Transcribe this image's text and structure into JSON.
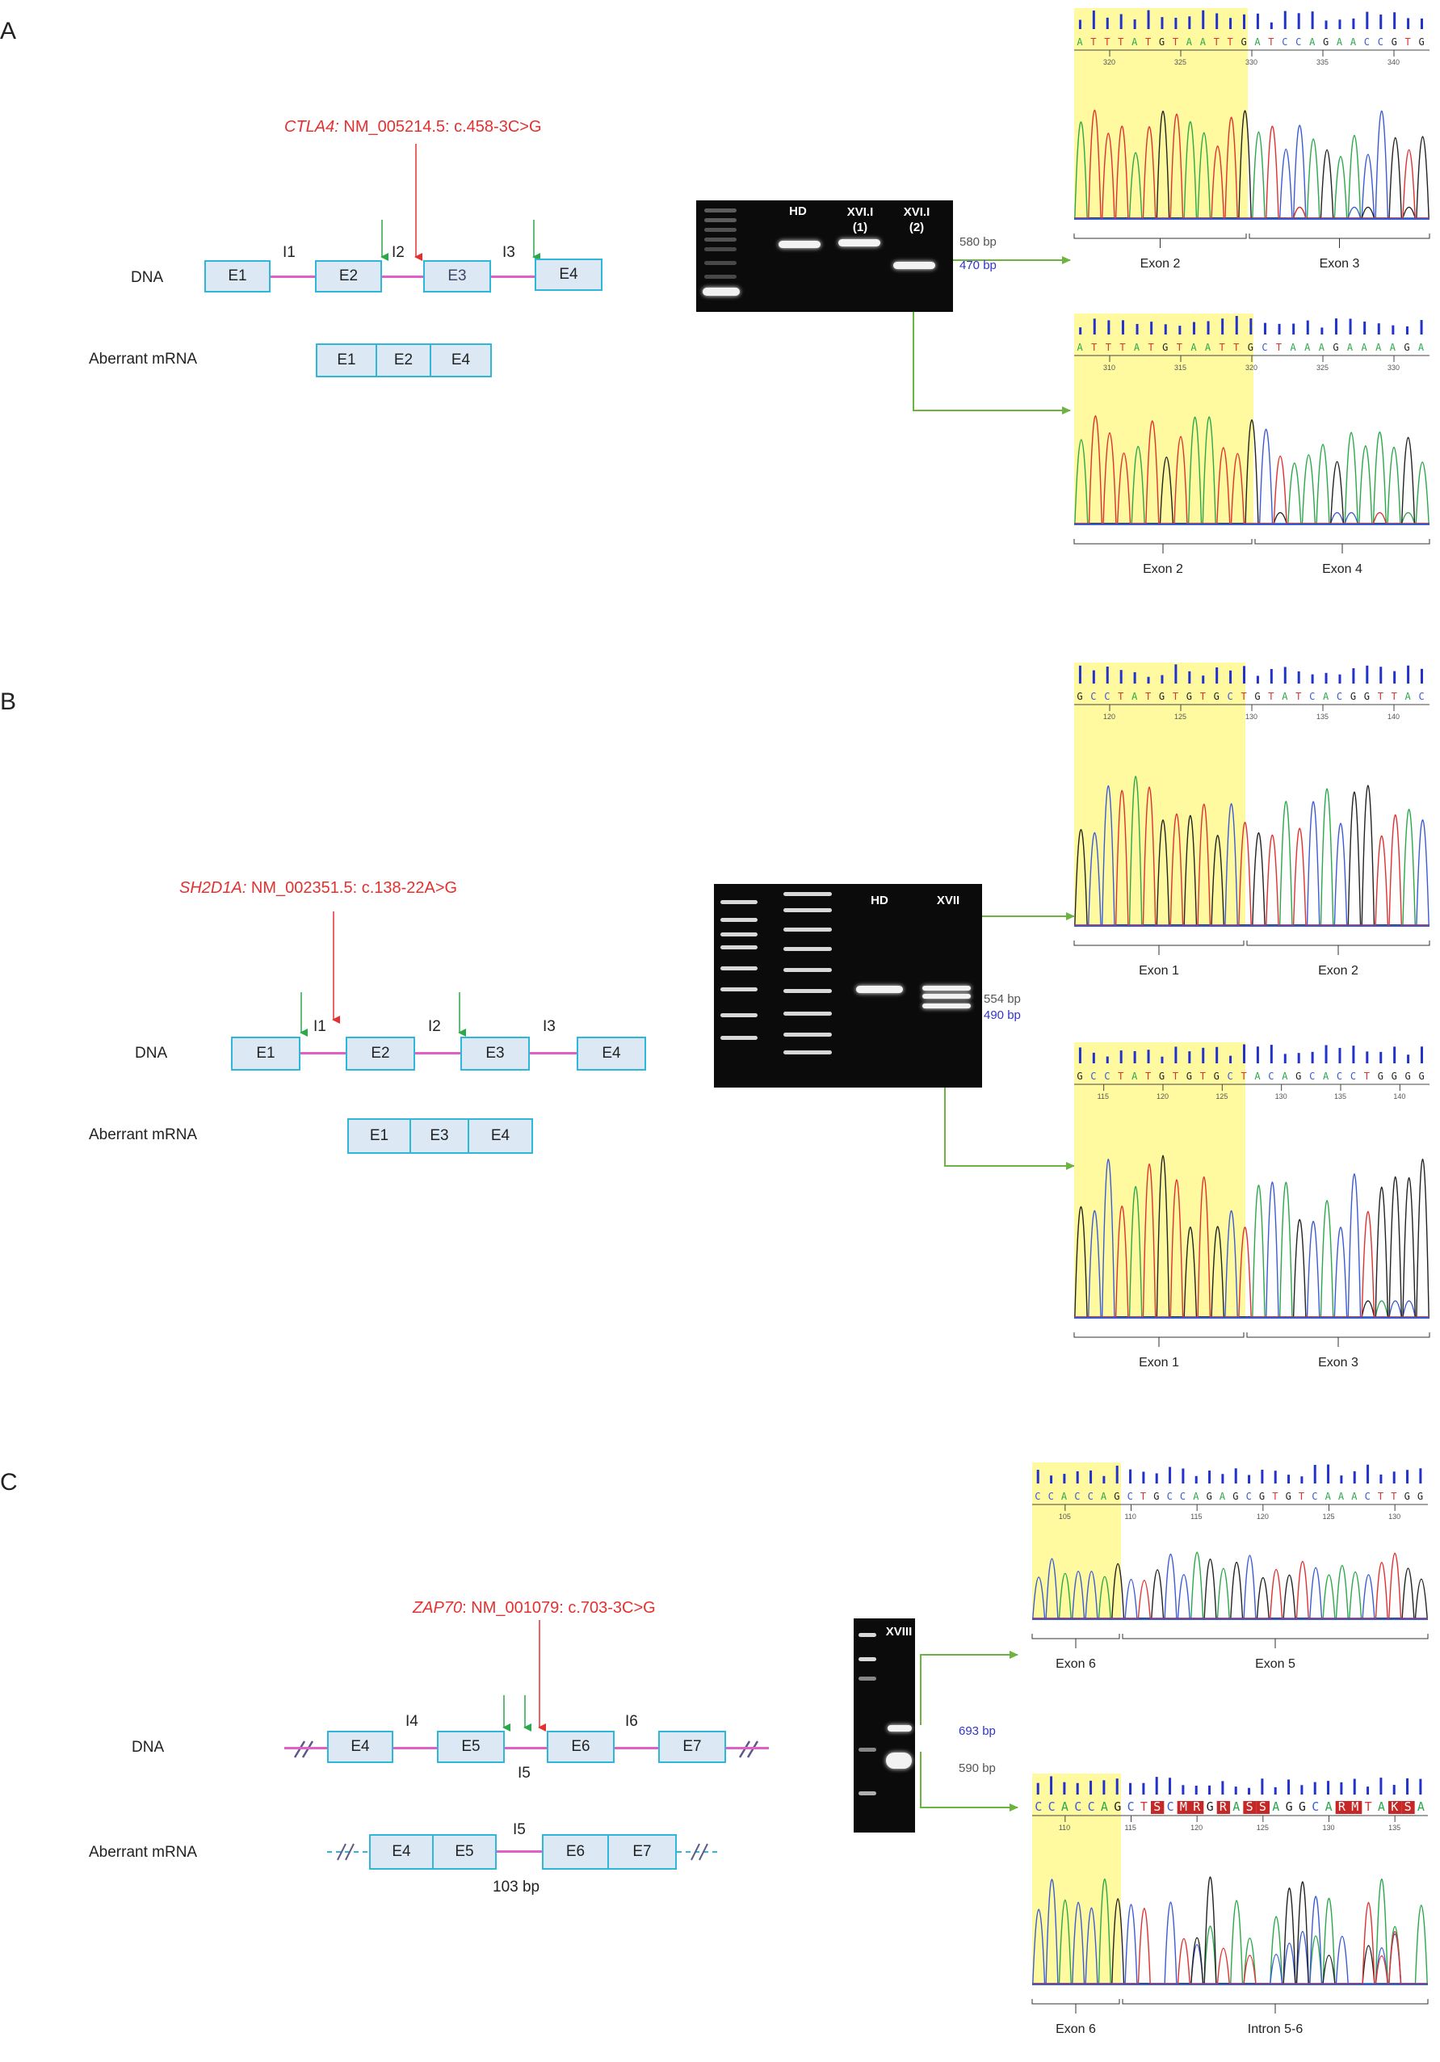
{
  "panels": {
    "A": {
      "letter": "A",
      "mutation_gene": "CTLA4:",
      "mutation_rest": " NM_005214.5: c.458-3C>G",
      "dna_label": "DNA",
      "mrna_label": "Aberrant mRNA",
      "dna_exons": [
        "E1",
        "E2",
        "E3",
        "E4"
      ],
      "introns": [
        "I1",
        "I2",
        "I3"
      ],
      "mrna_exons": [
        "E1",
        "E2",
        "E4"
      ],
      "gel_lanes": [
        "HD",
        "XVI.I\n(1)",
        "XVI.I\n(2)"
      ],
      "bp_upper": "580 bp",
      "bp_lower": "470 bp",
      "top_seq": "ATTTATGTAATTGATCCAGAACCGTG",
      "top_ticks": [
        "320",
        "325",
        "330",
        "335",
        "340"
      ],
      "top_exons": [
        "Exon 2",
        "Exon 3"
      ],
      "bot_seq": "ATTTATGTAATTGCTAAAGAAAAGA",
      "bot_ticks": [
        "310",
        "315",
        "320",
        "325",
        "330"
      ],
      "bot_exons": [
        "Exon 2",
        "Exon 4"
      ]
    },
    "B": {
      "letter": "B",
      "mutation_gene": "SH2D1A:",
      "mutation_rest": " NM_002351.5: c.138-22A>G",
      "dna_label": "DNA",
      "mrna_label": "Aberrant mRNA",
      "dna_exons": [
        "E1",
        "E2",
        "E3",
        "E4"
      ],
      "introns": [
        "I1",
        "I2",
        "I3"
      ],
      "mrna_exons": [
        "E1",
        "E3",
        "E4"
      ],
      "gel_lanes": [
        "HD",
        "XVII"
      ],
      "bp_upper": "554 bp",
      "bp_lower": "490 bp",
      "top_seq": "GCCTATGTGTGCTGTATCACGGTTAC",
      "top_ticks": [
        "120",
        "125",
        "130",
        "135",
        "140"
      ],
      "top_exons": [
        "Exon 1",
        "Exon 2"
      ],
      "bot_seq": "GCCTATGTGTGCTACAGCACCTGGGG",
      "bot_ticks": [
        "115",
        "120",
        "125",
        "130",
        "135",
        "140"
      ],
      "bot_exons": [
        "Exon 1",
        "Exon 3"
      ]
    },
    "C": {
      "letter": "C",
      "mutation_gene": "ZAP70",
      "mutation_rest": ": NM_001079: c.703-3C>G",
      "dna_label": "DNA",
      "mrna_label": "Aberrant mRNA",
      "dna_exons": [
        "E4",
        "E5",
        "E6",
        "E7"
      ],
      "introns": [
        "I4",
        "I5",
        "I6"
      ],
      "mrna_exons": [
        "E4",
        "E5",
        "E6",
        "E7"
      ],
      "mrna_intron": "I5",
      "mrna_size": "103 bp",
      "gel_lanes": [
        "XVIII"
      ],
      "bp_upper": "693 bp",
      "bp_lower": "590 bp",
      "top_seq": "CCACCAGCTGCCAGAGCGTGTCAAACTTGG",
      "top_ticks": [
        "105",
        "110",
        "115",
        "120",
        "125",
        "130"
      ],
      "top_exons": [
        "Exon 6",
        "Exon 5"
      ],
      "bot_seq": "CCACCAGCTSCMRGRASSAGGCARMTAKSA",
      "bot_ticks": [
        "110",
        "115",
        "120",
        "125",
        "130",
        "135"
      ],
      "bot_exons": [
        "Exon 6",
        "Intron 5-6"
      ]
    }
  },
  "colors": {
    "mutation": "#e53030",
    "exon_fill": "#dce9f4",
    "exon_border": "#2fb6d8",
    "intron": "#e060c8",
    "arrow_connector": "#6db33f",
    "green_arrow": "#2aa84a",
    "red_arrow": "#e53030",
    "highlight": "#fffaa0",
    "bp_blue": "#3333cc"
  }
}
